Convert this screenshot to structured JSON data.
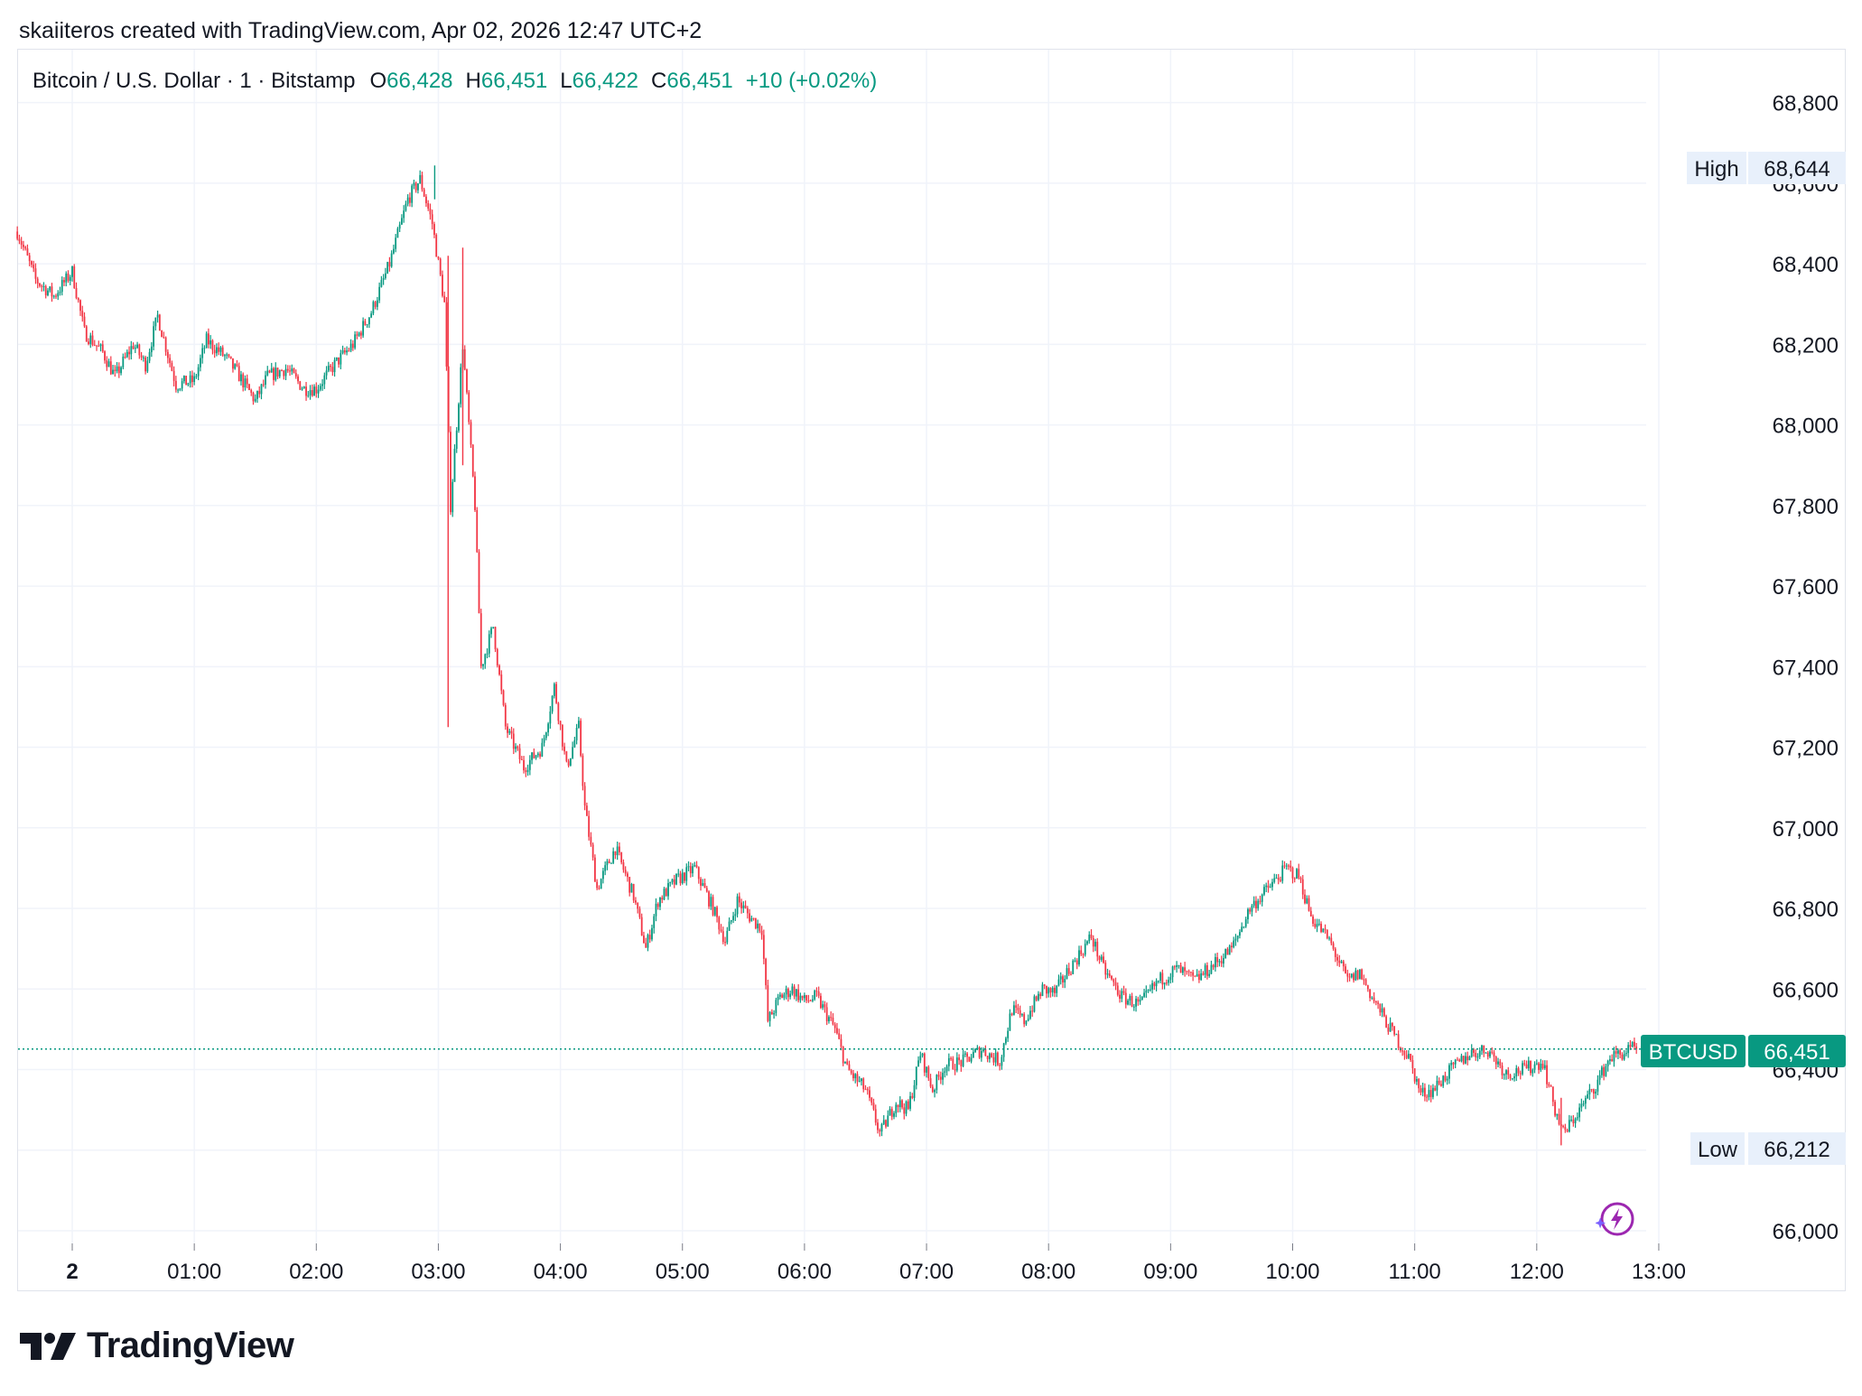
{
  "credit": "skaiiteros created with TradingView.com, Apr 02, 2026 12:47 UTC+2",
  "legend": {
    "symbol": "Bitcoin / U.S. Dollar · 1 · Bitstamp",
    "o_label": "O",
    "o_value": "66,428",
    "h_label": "H",
    "h_value": "66,451",
    "l_label": "L",
    "l_value": "66,422",
    "c_label": "C",
    "c_value": "66,451",
    "change": "+10 (+0.02%)"
  },
  "tags": {
    "high_label": "High",
    "high_value": "68,644",
    "low_label": "Low",
    "low_value": "66,212",
    "last_label": "BTCUSD",
    "last_value": "66,451"
  },
  "brand": "TradingView",
  "colors": {
    "up": "#089981",
    "down": "#f23645",
    "grid": "#f0f3fa",
    "last_tag": "#089981",
    "hl_tag": "#e8f0fb",
    "bolt": "#9c27b0"
  },
  "icons": {
    "brand": "tradingview-logo-icon",
    "bolt": "lightning-bolt-icon"
  },
  "chart_data": {
    "type": "candlestick",
    "title": "Bitcoin / U.S. Dollar · 1 · Bitstamp",
    "interval": "1",
    "y_ticks": [
      66000,
      66200,
      66400,
      66600,
      66800,
      67000,
      67200,
      67400,
      67600,
      67800,
      68000,
      68200,
      68400,
      68600,
      68800
    ],
    "y_tick_labels": [
      "66,000",
      "66,200",
      "66,400",
      "66,600",
      "66,800",
      "67,000",
      "67,200",
      "67,400",
      "67,600",
      "67,800",
      "68,000",
      "68,200",
      "68,400",
      "68,600",
      "68,800"
    ],
    "x_ticks": [
      0,
      1,
      2,
      3,
      4,
      5,
      6,
      7,
      8,
      9,
      10,
      11,
      12,
      13
    ],
    "x_tick_labels": [
      "2",
      "01:00",
      "02:00",
      "03:00",
      "04:00",
      "05:00",
      "06:00",
      "07:00",
      "08:00",
      "09:00",
      "10:00",
      "11:00",
      "12:00",
      "13:00"
    ],
    "x_range": [
      -0.45,
      12.83
    ],
    "ylim": [
      65930,
      68930
    ],
    "high": 68644,
    "low": 66212,
    "last": 66451,
    "grid": true,
    "path_points": [
      [
        -0.45,
        68480
      ],
      [
        -0.3,
        68360
      ],
      [
        -0.15,
        68320
      ],
      [
        0.0,
        68380
      ],
      [
        0.1,
        68230
      ],
      [
        0.25,
        68180
      ],
      [
        0.35,
        68120
      ],
      [
        0.5,
        68200
      ],
      [
        0.6,
        68150
      ],
      [
        0.7,
        68270
      ],
      [
        0.85,
        68100
      ],
      [
        1.0,
        68110
      ],
      [
        1.1,
        68210
      ],
      [
        1.25,
        68170
      ],
      [
        1.35,
        68130
      ],
      [
        1.5,
        68060
      ],
      [
        1.6,
        68120
      ],
      [
        1.75,
        68140
      ],
      [
        1.9,
        68090
      ],
      [
        2.0,
        68090
      ],
      [
        2.15,
        68150
      ],
      [
        2.3,
        68200
      ],
      [
        2.45,
        68280
      ],
      [
        2.6,
        68400
      ],
      [
        2.75,
        68560
      ],
      [
        2.85,
        68610
      ],
      [
        2.95,
        68500
      ],
      [
        3.05,
        68300
      ],
      [
        3.1,
        67800
      ],
      [
        3.2,
        68200
      ],
      [
        3.3,
        67800
      ],
      [
        3.35,
        67400
      ],
      [
        3.45,
        67500
      ],
      [
        3.55,
        67250
      ],
      [
        3.7,
        67150
      ],
      [
        3.85,
        67200
      ],
      [
        3.95,
        67350
      ],
      [
        4.05,
        67150
      ],
      [
        4.15,
        67250
      ],
      [
        4.2,
        67050
      ],
      [
        4.3,
        66850
      ],
      [
        4.45,
        66950
      ],
      [
        4.6,
        66830
      ],
      [
        4.7,
        66700
      ],
      [
        4.8,
        66820
      ],
      [
        4.95,
        66870
      ],
      [
        5.1,
        66900
      ],
      [
        5.25,
        66800
      ],
      [
        5.35,
        66720
      ],
      [
        5.45,
        66820
      ],
      [
        5.55,
        66780
      ],
      [
        5.65,
        66750
      ],
      [
        5.7,
        66520
      ],
      [
        5.8,
        66580
      ],
      [
        5.9,
        66600
      ],
      [
        6.0,
        66570
      ],
      [
        6.1,
        66580
      ],
      [
        6.25,
        66500
      ],
      [
        6.35,
        66400
      ],
      [
        6.5,
        66350
      ],
      [
        6.62,
        66240
      ],
      [
        6.75,
        66320
      ],
      [
        6.85,
        66300
      ],
      [
        6.95,
        66440
      ],
      [
        7.05,
        66350
      ],
      [
        7.15,
        66410
      ],
      [
        7.3,
        66420
      ],
      [
        7.45,
        66450
      ],
      [
        7.6,
        66420
      ],
      [
        7.7,
        66550
      ],
      [
        7.8,
        66520
      ],
      [
        7.95,
        66600
      ],
      [
        8.05,
        66590
      ],
      [
        8.15,
        66640
      ],
      [
        8.35,
        66730
      ],
      [
        8.45,
        66650
      ],
      [
        8.6,
        66580
      ],
      [
        8.75,
        66560
      ],
      [
        8.9,
        66620
      ],
      [
        9.05,
        66650
      ],
      [
        9.2,
        66620
      ],
      [
        9.35,
        66660
      ],
      [
        9.5,
        66700
      ],
      [
        9.65,
        66800
      ],
      [
        9.8,
        66850
      ],
      [
        9.95,
        66900
      ],
      [
        10.05,
        66880
      ],
      [
        10.15,
        66780
      ],
      [
        10.3,
        66720
      ],
      [
        10.45,
        66620
      ],
      [
        10.55,
        66640
      ],
      [
        10.65,
        66580
      ],
      [
        10.8,
        66500
      ],
      [
        10.95,
        66430
      ],
      [
        11.05,
        66340
      ],
      [
        11.15,
        66350
      ],
      [
        11.3,
        66400
      ],
      [
        11.45,
        66440
      ],
      [
        11.6,
        66450
      ],
      [
        11.75,
        66390
      ],
      [
        11.9,
        66400
      ],
      [
        12.05,
        66420
      ],
      [
        12.15,
        66300
      ],
      [
        12.22,
        66240
      ],
      [
        12.35,
        66300
      ],
      [
        12.5,
        66370
      ],
      [
        12.6,
        66430
      ],
      [
        12.7,
        66440
      ],
      [
        12.78,
        66451
      ]
    ]
  }
}
